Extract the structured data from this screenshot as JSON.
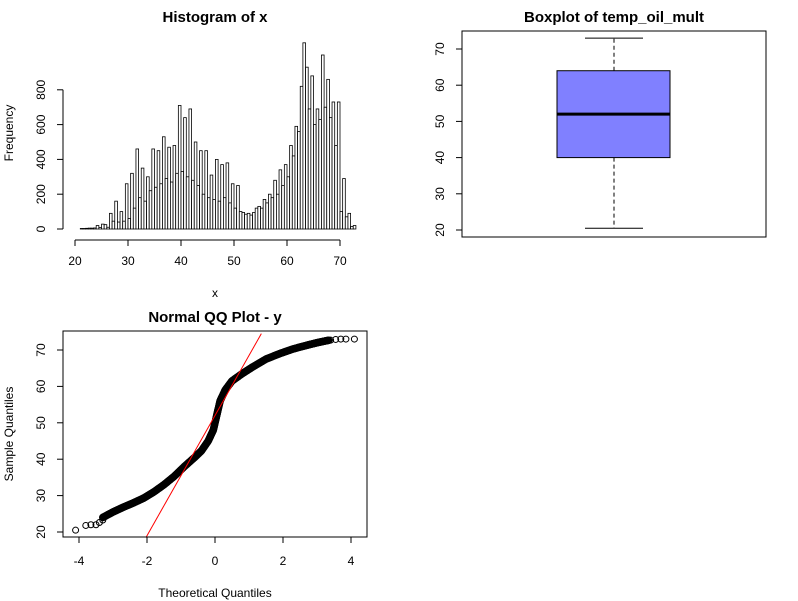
{
  "figure": {
    "background": "#ffffff"
  },
  "chart_data": [
    {
      "id": "histogram",
      "type": "bar",
      "title": "Histogram of x",
      "xlabel": "x",
      "ylabel": "Frequency",
      "xlim": [
        20,
        73
      ],
      "ylim": [
        0,
        1000
      ],
      "xticks": [
        20,
        30,
        40,
        50,
        60,
        70
      ],
      "yticks": [
        0,
        200,
        400,
        600,
        800
      ],
      "bin_width": 0.5,
      "bar_fill": "#ffffff",
      "bar_stroke": "#000000",
      "bins": [
        {
          "x0": 21.0,
          "count": 3
        },
        {
          "x0": 21.5,
          "count": 3
        },
        {
          "x0": 22.0,
          "count": 4
        },
        {
          "x0": 22.5,
          "count": 5
        },
        {
          "x0": 23.0,
          "count": 5
        },
        {
          "x0": 23.5,
          "count": 6
        },
        {
          "x0": 24.0,
          "count": 20
        },
        {
          "x0": 24.5,
          "count": 8
        },
        {
          "x0": 25.0,
          "count": 28
        },
        {
          "x0": 25.5,
          "count": 25
        },
        {
          "x0": 26.0,
          "count": 10
        },
        {
          "x0": 26.5,
          "count": 90
        },
        {
          "x0": 27.0,
          "count": 45
        },
        {
          "x0": 27.5,
          "count": 160
        },
        {
          "x0": 28.0,
          "count": 40
        },
        {
          "x0": 28.5,
          "count": 100
        },
        {
          "x0": 29.0,
          "count": 45
        },
        {
          "x0": 29.5,
          "count": 260
        },
        {
          "x0": 30.0,
          "count": 60
        },
        {
          "x0": 30.5,
          "count": 320
        },
        {
          "x0": 31.0,
          "count": 120
        },
        {
          "x0": 31.5,
          "count": 460
        },
        {
          "x0": 32.0,
          "count": 180
        },
        {
          "x0": 32.5,
          "count": 350
        },
        {
          "x0": 33.0,
          "count": 160
        },
        {
          "x0": 33.5,
          "count": 300
        },
        {
          "x0": 34.0,
          "count": 220
        },
        {
          "x0": 34.5,
          "count": 460
        },
        {
          "x0": 35.0,
          "count": 240
        },
        {
          "x0": 35.5,
          "count": 450
        },
        {
          "x0": 36.0,
          "count": 260
        },
        {
          "x0": 36.5,
          "count": 530
        },
        {
          "x0": 37.0,
          "count": 290
        },
        {
          "x0": 37.5,
          "count": 470
        },
        {
          "x0": 38.0,
          "count": 270
        },
        {
          "x0": 38.5,
          "count": 480
        },
        {
          "x0": 39.0,
          "count": 320
        },
        {
          "x0": 39.5,
          "count": 710
        },
        {
          "x0": 40.0,
          "count": 330
        },
        {
          "x0": 40.5,
          "count": 640
        },
        {
          "x0": 41.0,
          "count": 300
        },
        {
          "x0": 41.5,
          "count": 690
        },
        {
          "x0": 42.0,
          "count": 280
        },
        {
          "x0": 42.5,
          "count": 500
        },
        {
          "x0": 43.0,
          "count": 250
        },
        {
          "x0": 43.5,
          "count": 450
        },
        {
          "x0": 44.0,
          "count": 200
        },
        {
          "x0": 44.5,
          "count": 450
        },
        {
          "x0": 45.0,
          "count": 180
        },
        {
          "x0": 45.5,
          "count": 310
        },
        {
          "x0": 46.0,
          "count": 170
        },
        {
          "x0": 46.5,
          "count": 400
        },
        {
          "x0": 47.0,
          "count": 160
        },
        {
          "x0": 47.5,
          "count": 370
        },
        {
          "x0": 48.0,
          "count": 180
        },
        {
          "x0": 48.5,
          "count": 380
        },
        {
          "x0": 49.0,
          "count": 150
        },
        {
          "x0": 49.5,
          "count": 260
        },
        {
          "x0": 50.0,
          "count": 120
        },
        {
          "x0": 50.5,
          "count": 250
        },
        {
          "x0": 51.0,
          "count": 100
        },
        {
          "x0": 51.5,
          "count": 95
        },
        {
          "x0": 52.0,
          "count": 85
        },
        {
          "x0": 52.5,
          "count": 90
        },
        {
          "x0": 53.0,
          "count": 80
        },
        {
          "x0": 53.5,
          "count": 95
        },
        {
          "x0": 54.0,
          "count": 120
        },
        {
          "x0": 54.5,
          "count": 130
        },
        {
          "x0": 55.0,
          "count": 120
        },
        {
          "x0": 55.5,
          "count": 170
        },
        {
          "x0": 56.0,
          "count": 150
        },
        {
          "x0": 56.5,
          "count": 200
        },
        {
          "x0": 57.0,
          "count": 180
        },
        {
          "x0": 57.5,
          "count": 280
        },
        {
          "x0": 58.0,
          "count": 200
        },
        {
          "x0": 58.5,
          "count": 340
        },
        {
          "x0": 59.0,
          "count": 250
        },
        {
          "x0": 59.5,
          "count": 370
        },
        {
          "x0": 60.0,
          "count": 300
        },
        {
          "x0": 60.5,
          "count": 480
        },
        {
          "x0": 61.0,
          "count": 420
        },
        {
          "x0": 61.5,
          "count": 590
        },
        {
          "x0": 62.0,
          "count": 560
        },
        {
          "x0": 62.5,
          "count": 820
        },
        {
          "x0": 63.0,
          "count": 1070
        },
        {
          "x0": 63.5,
          "count": 930
        },
        {
          "x0": 64.0,
          "count": 690
        },
        {
          "x0": 64.5,
          "count": 880
        },
        {
          "x0": 65.0,
          "count": 600
        },
        {
          "x0": 65.5,
          "count": 690
        },
        {
          "x0": 66.0,
          "count": 630
        },
        {
          "x0": 66.5,
          "count": 1000
        },
        {
          "x0": 67.0,
          "count": 700
        },
        {
          "x0": 67.5,
          "count": 860
        },
        {
          "x0": 68.0,
          "count": 640
        },
        {
          "x0": 68.5,
          "count": 730
        },
        {
          "x0": 69.0,
          "count": 480
        },
        {
          "x0": 69.5,
          "count": 730
        },
        {
          "x0": 70.0,
          "count": 100
        },
        {
          "x0": 70.5,
          "count": 290
        },
        {
          "x0": 71.0,
          "count": 70
        },
        {
          "x0": 71.5,
          "count": 90
        },
        {
          "x0": 72.0,
          "count": 15
        },
        {
          "x0": 72.5,
          "count": 20
        }
      ]
    },
    {
      "id": "boxplot",
      "type": "box",
      "title": "Boxplot of temp_oil_mult",
      "ylim": [
        19.5,
        75
      ],
      "yticks": [
        20,
        30,
        40,
        50,
        60,
        70
      ],
      "stats": {
        "min": 20.5,
        "q1": 40,
        "median": 52,
        "q3": 64,
        "max": 73
      },
      "box_fill": "#8080ff",
      "box_stroke": "#000000"
    },
    {
      "id": "qqplot",
      "type": "scatter",
      "title": "Normal QQ Plot - y",
      "xlabel": "Theoretical Quantiles",
      "ylabel": "Sample Quantiles",
      "xlim": [
        -4.3,
        4.3
      ],
      "ylim": [
        18.5,
        74.5
      ],
      "xticks": [
        -4,
        -2,
        0,
        2,
        4
      ],
      "yticks": [
        20,
        30,
        40,
        50,
        60,
        70
      ],
      "point_color": "#000000",
      "line_color": "#ff0000",
      "reference_line": {
        "intercept": 52,
        "slope": 16.5
      },
      "quantile_curve": [
        [
          -4.1,
          20.5
        ],
        [
          -3.6,
          22
        ],
        [
          -3.3,
          24
        ],
        [
          -3.0,
          25.5
        ],
        [
          -2.7,
          26.8
        ],
        [
          -2.4,
          28
        ],
        [
          -2.1,
          29.3
        ],
        [
          -1.8,
          31
        ],
        [
          -1.5,
          33
        ],
        [
          -1.2,
          35.3
        ],
        [
          -0.9,
          38
        ],
        [
          -0.6,
          40.5
        ],
        [
          -0.4,
          42.3
        ],
        [
          -0.2,
          45
        ],
        [
          -0.05,
          48
        ],
        [
          0.05,
          52
        ],
        [
          0.15,
          56
        ],
        [
          0.3,
          59
        ],
        [
          0.5,
          61.5
        ],
        [
          0.8,
          63.5
        ],
        [
          1.1,
          65.3
        ],
        [
          1.5,
          67.5
        ],
        [
          1.9,
          69
        ],
        [
          2.3,
          70.3
        ],
        [
          2.7,
          71.3
        ],
        [
          3.0,
          72
        ],
        [
          3.3,
          72.6
        ],
        [
          3.6,
          73
        ]
      ],
      "outlier_points": [
        [
          -4.1,
          20.5
        ],
        [
          -3.8,
          21.8
        ],
        [
          -3.65,
          22
        ],
        [
          -3.5,
          22
        ],
        [
          -3.4,
          22.6
        ],
        [
          -3.3,
          23.3
        ],
        [
          3.4,
          72.7
        ],
        [
          3.55,
          72.9
        ],
        [
          3.7,
          73
        ],
        [
          3.85,
          73
        ],
        [
          4.1,
          73
        ]
      ]
    }
  ]
}
